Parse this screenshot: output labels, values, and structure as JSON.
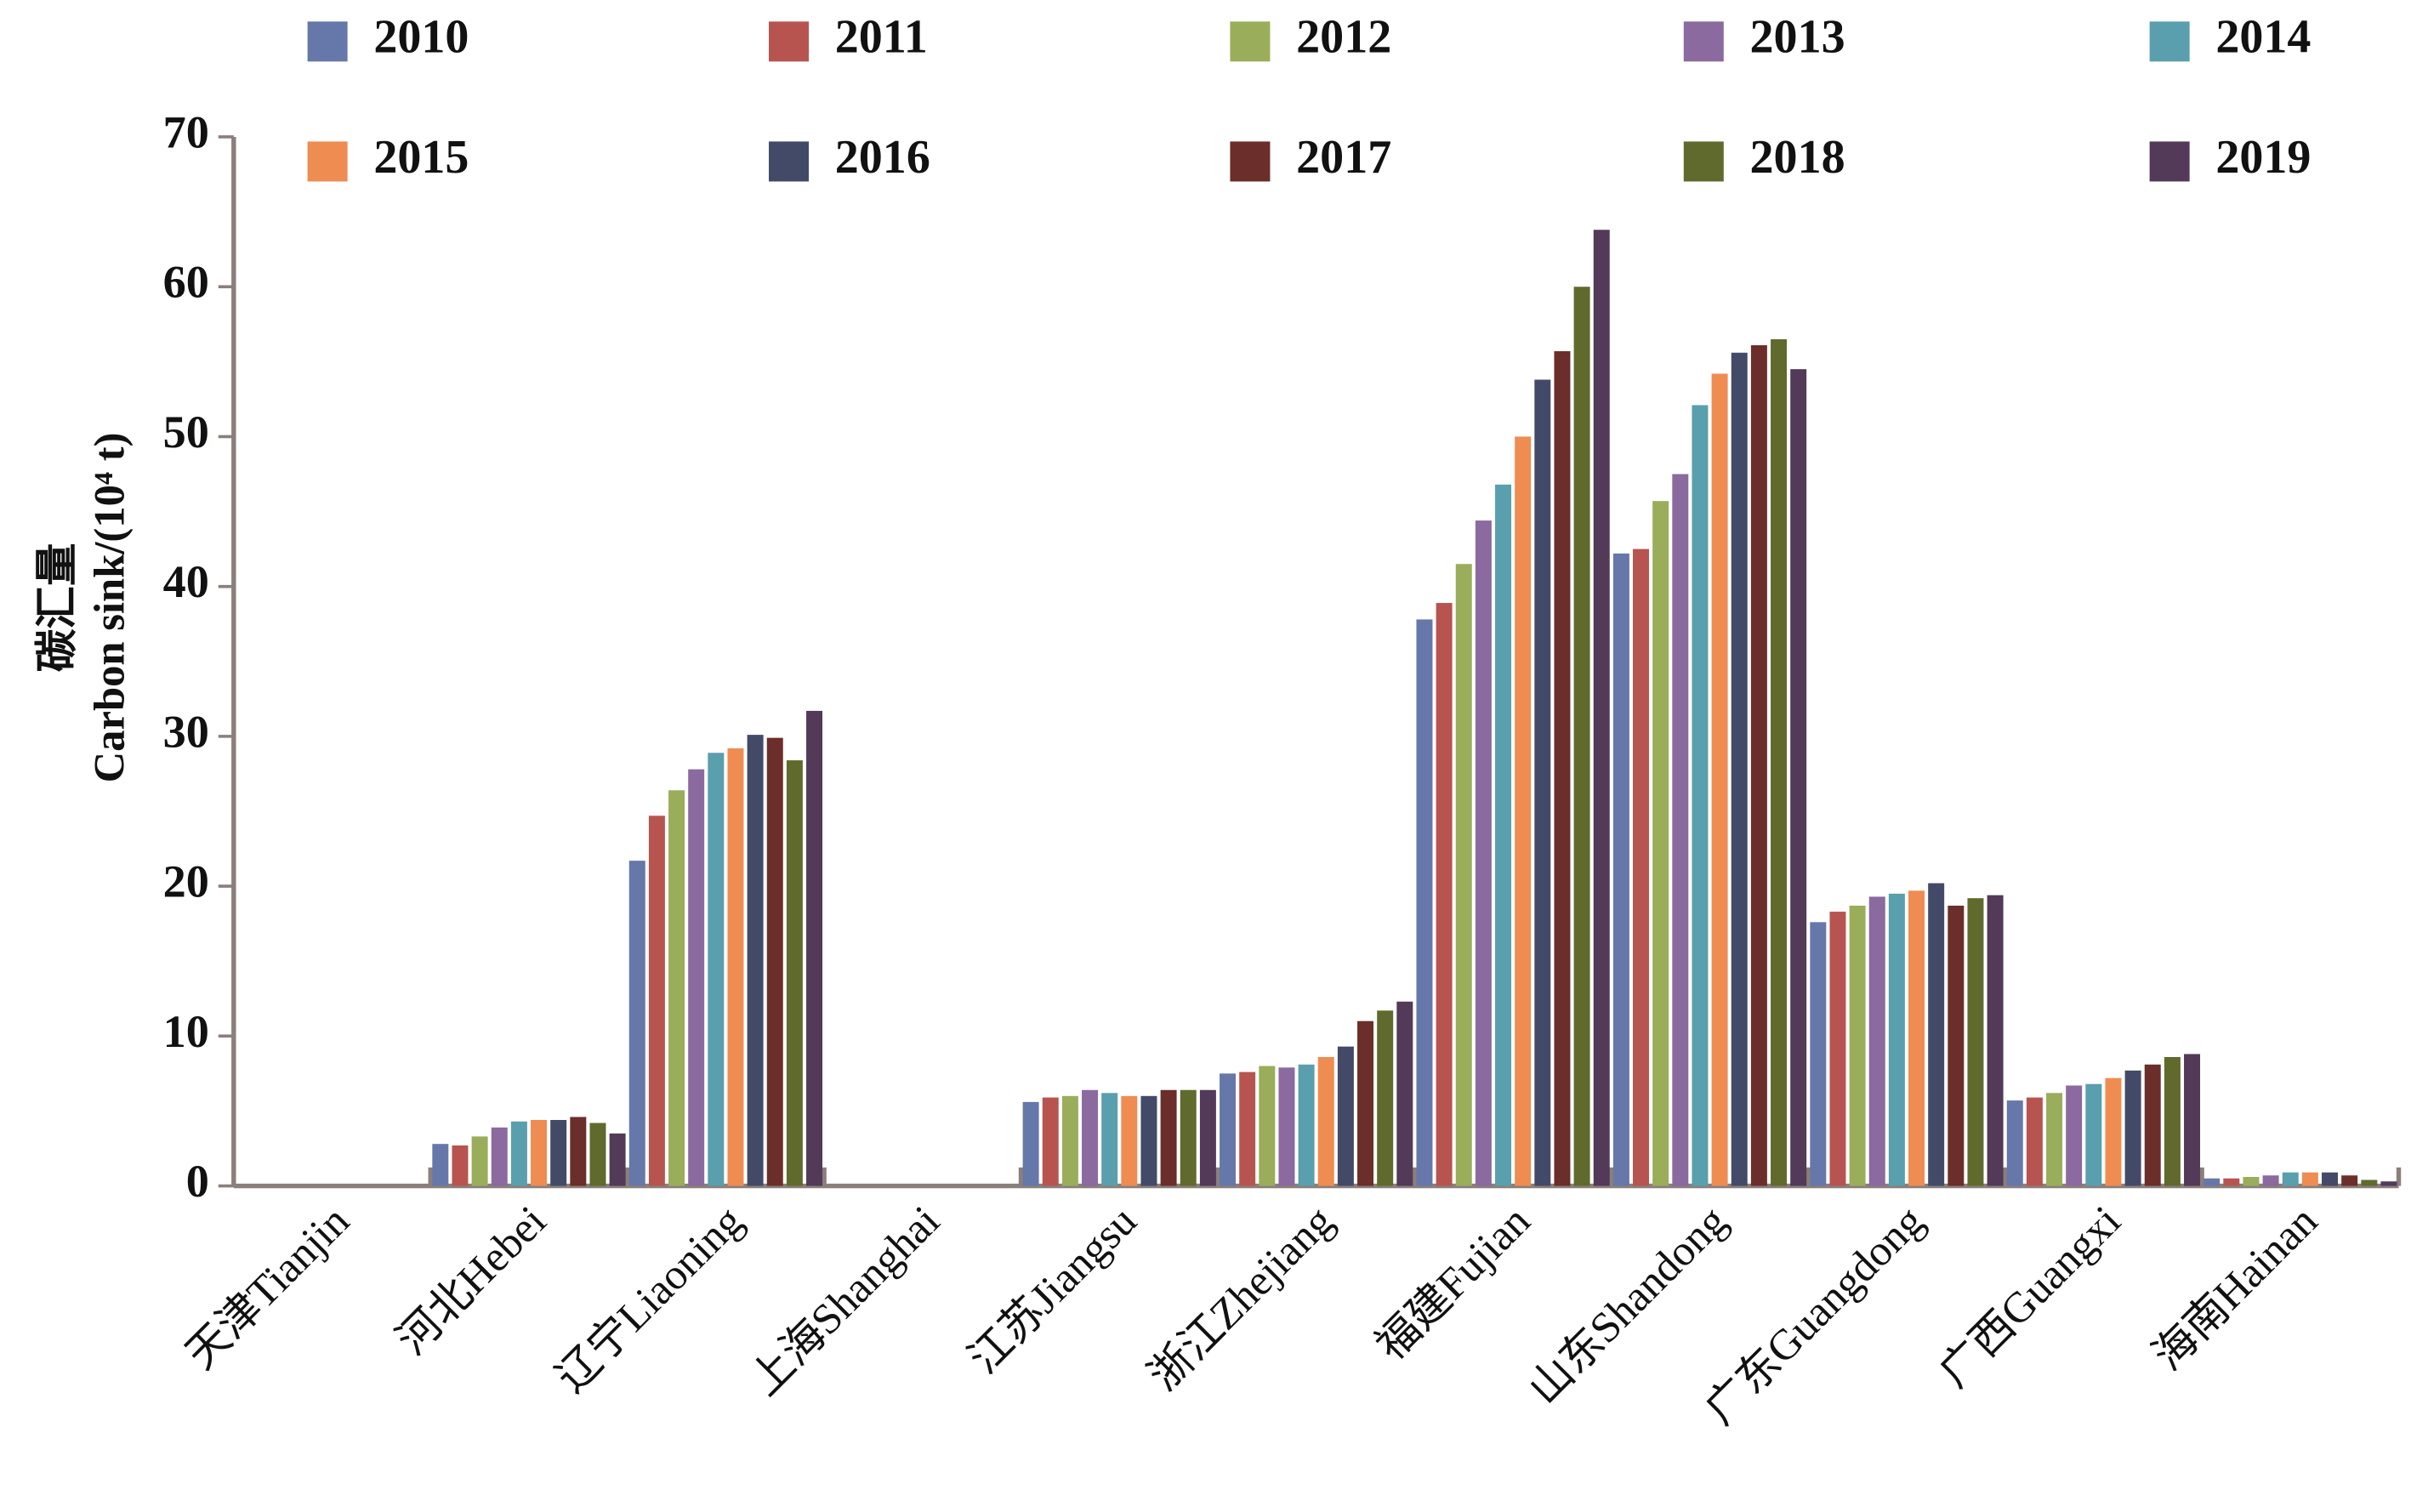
{
  "chart_data": {
    "type": "bar",
    "y_label_cn": "碳汇量",
    "y_label": "Carbon sink/(10⁴ t)",
    "categories": [
      "天津Tianjin",
      "河北Hebei",
      "辽宁Liaoning",
      "上海Shanghai",
      "江苏Jiangsu",
      "浙江Zhejiang",
      "福建Fujian",
      "山东Shandong",
      "广东Guangdong",
      "广西Guangxi",
      "海南Hainan"
    ],
    "series": [
      {
        "name": "2010",
        "color": "#6677aa",
        "values": [
          0,
          2.8,
          21.7,
          0,
          5.6,
          7.5,
          37.8,
          42.2,
          17.6,
          5.7,
          0.5
        ]
      },
      {
        "name": "2011",
        "color": "#b85450",
        "values": [
          0,
          2.7,
          24.7,
          0,
          5.9,
          7.6,
          38.9,
          42.5,
          18.3,
          5.9,
          0.5
        ]
      },
      {
        "name": "2012",
        "color": "#9aad5a",
        "values": [
          0,
          3.3,
          26.4,
          0,
          6.0,
          8.0,
          41.5,
          45.7,
          18.7,
          6.2,
          0.6
        ]
      },
      {
        "name": "2013",
        "color": "#8a6a9f",
        "values": [
          0,
          3.9,
          27.8,
          0,
          6.4,
          7.9,
          44.4,
          47.5,
          19.3,
          6.7,
          0.7
        ]
      },
      {
        "name": "2014",
        "color": "#5a9fad",
        "values": [
          0,
          4.3,
          28.9,
          0,
          6.2,
          8.1,
          46.8,
          52.1,
          19.5,
          6.8,
          0.9
        ]
      },
      {
        "name": "2015",
        "color": "#ef8c52",
        "values": [
          0,
          4.4,
          29.2,
          0,
          6.0,
          8.6,
          50.0,
          54.2,
          19.7,
          7.2,
          0.9
        ]
      },
      {
        "name": "2016",
        "color": "#434a68",
        "values": [
          0,
          4.4,
          30.1,
          0,
          6.0,
          9.3,
          53.8,
          55.6,
          20.2,
          7.7,
          0.9
        ]
      },
      {
        "name": "2017",
        "color": "#6b2e2a",
        "values": [
          0,
          4.6,
          29.9,
          0,
          6.4,
          11.0,
          55.7,
          56.1,
          18.7,
          8.1,
          0.7
        ]
      },
      {
        "name": "2018",
        "color": "#5f6a2c",
        "values": [
          0,
          4.2,
          28.4,
          0,
          6.4,
          11.7,
          60.0,
          56.5,
          19.2,
          8.6,
          0.4
        ]
      },
      {
        "name": "2019",
        "color": "#523a58",
        "values": [
          0,
          3.5,
          31.7,
          0,
          6.4,
          12.3,
          63.8,
          54.5,
          19.4,
          8.8,
          0.3
        ]
      }
    ],
    "ylim": [
      0,
      70
    ],
    "yticks": [
      0,
      10,
      20,
      30,
      40,
      50,
      60,
      70
    ]
  }
}
